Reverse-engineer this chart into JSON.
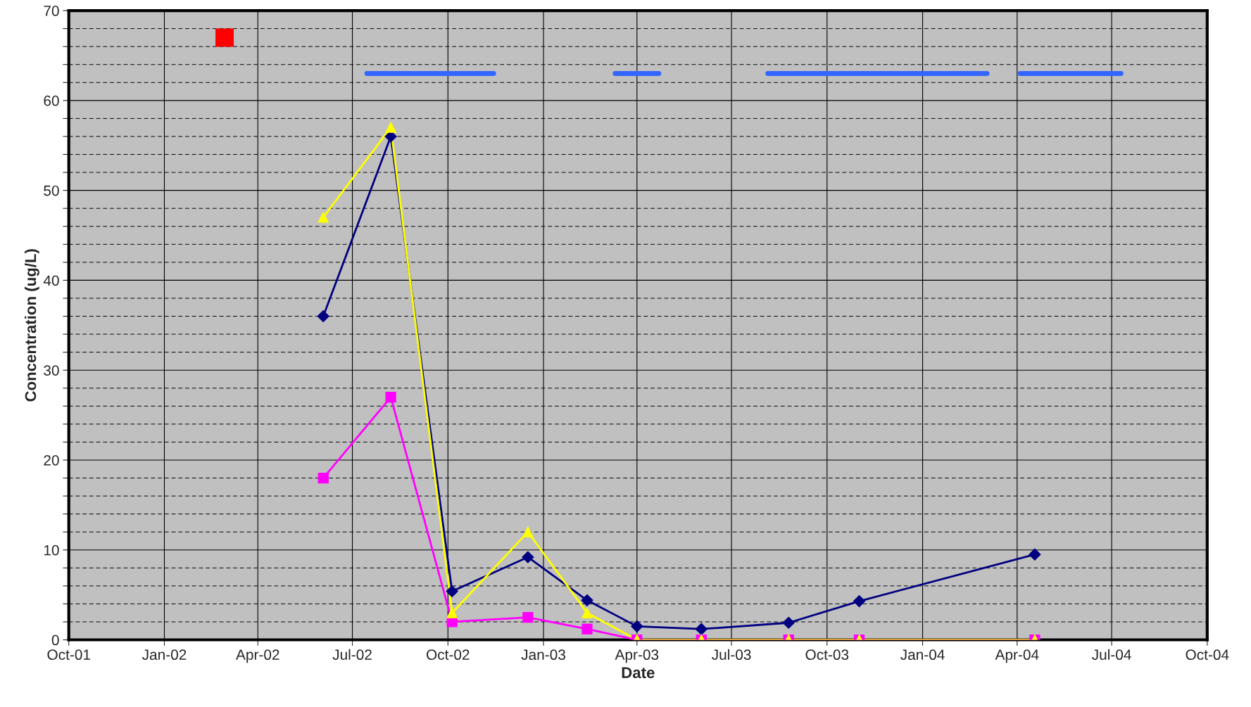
{
  "chart_data": {
    "type": "line",
    "xlabel": "Date",
    "ylabel": "Concentration (ug/L)",
    "xlim": [
      "2001-10-01",
      "2004-10-01"
    ],
    "xticks": [
      {
        "value": "2001-10-01",
        "label": "Oct-01"
      },
      {
        "value": "2002-01-01",
        "label": "Jan-02"
      },
      {
        "value": "2002-04-01",
        "label": "Apr-02"
      },
      {
        "value": "2002-07-01",
        "label": "Jul-02"
      },
      {
        "value": "2002-10-01",
        "label": "Oct-02"
      },
      {
        "value": "2003-01-01",
        "label": "Jan-03"
      },
      {
        "value": "2003-04-01",
        "label": "Apr-03"
      },
      {
        "value": "2003-07-01",
        "label": "Jul-03"
      },
      {
        "value": "2003-10-01",
        "label": "Oct-03"
      },
      {
        "value": "2004-01-01",
        "label": "Jan-04"
      },
      {
        "value": "2004-04-01",
        "label": "Apr-04"
      },
      {
        "value": "2004-07-01",
        "label": "Jul-04"
      },
      {
        "value": "2004-10-01",
        "label": "Oct-04"
      }
    ],
    "ylim": [
      0,
      70
    ],
    "yticks": [
      0,
      {
        "value": 2,
        "label": null
      },
      {
        "value": 4,
        "label": null
      },
      {
        "value": 6,
        "label": null
      },
      {
        "value": 8,
        "label": null
      },
      10,
      {
        "value": 12,
        "label": null
      },
      {
        "value": 14,
        "label": null
      },
      {
        "value": 16,
        "label": null
      },
      {
        "value": 18,
        "label": null
      },
      20,
      {
        "value": 22,
        "label": null
      },
      {
        "value": 24,
        "label": null
      },
      {
        "value": 26,
        "label": null
      },
      {
        "value": 28,
        "label": null
      },
      30,
      {
        "value": 32,
        "label": null
      },
      {
        "value": 34,
        "label": null
      },
      {
        "value": 36,
        "label": null
      },
      {
        "value": 38,
        "label": null
      },
      40,
      {
        "value": 42,
        "label": null
      },
      {
        "value": 44,
        "label": null
      },
      {
        "value": 46,
        "label": null
      },
      {
        "value": 48,
        "label": null
      },
      50,
      {
        "value": 52,
        "label": null
      },
      {
        "value": 54,
        "label": null
      },
      {
        "value": 56,
        "label": null
      },
      {
        "value": 58,
        "label": null
      },
      60,
      {
        "value": 62,
        "label": null
      },
      {
        "value": 64,
        "label": null
      },
      {
        "value": 66,
        "label": null
      },
      {
        "value": 68,
        "label": null
      },
      70
    ],
    "grid": true,
    "legend": false,
    "series": [
      {
        "marker": "diamond",
        "color": "#000080",
        "x": [
          "2002-06-03",
          "2002-08-07",
          "2002-10-05",
          "2002-12-17",
          "2003-02-12",
          "2003-04-01",
          "2003-06-02",
          "2003-08-25",
          "2003-11-01",
          "2004-04-18"
        ],
        "values": [
          36,
          56,
          5.4,
          9.2,
          4.4,
          1.5,
          1.2,
          1.9,
          4.3,
          9.5
        ]
      },
      {
        "marker": "square",
        "color": "#ff00ff",
        "x": [
          "2002-06-03",
          "2002-08-07",
          "2002-10-05",
          "2002-12-17",
          "2003-02-12",
          "2003-04-01",
          "2003-06-02",
          "2003-08-25",
          "2003-11-01",
          "2004-04-18"
        ],
        "values": [
          18,
          27,
          2,
          2.5,
          1.2,
          0,
          0,
          0,
          0,
          0
        ]
      },
      {
        "marker": "triangle",
        "color": "#ffff00",
        "x": [
          "2002-06-03",
          "2002-08-07",
          "2002-10-05",
          "2002-12-17",
          "2003-02-12",
          "2003-04-01",
          "2003-06-02",
          "2003-08-25",
          "2003-11-01",
          "2004-04-18"
        ],
        "values": [
          47,
          57,
          3,
          12,
          3,
          0,
          0,
          0,
          0,
          0
        ]
      },
      {
        "type": "scatter",
        "marker": "square",
        "color": "#ff0000",
        "x": [
          "2002-02-28"
        ],
        "values": [
          67
        ]
      },
      {
        "marker": "none",
        "color": "#3366ff",
        "x": [
          "2002-07-15",
          "2002-11-14"
        ],
        "values": [
          63,
          63
        ]
      },
      {
        "marker": "none",
        "color": "#3366ff",
        "x": [
          "2003-03-11",
          "2003-04-22"
        ],
        "values": [
          63,
          63
        ]
      },
      {
        "marker": "none",
        "color": "#3366ff",
        "x": [
          "2003-08-05",
          "2004-03-03"
        ],
        "values": [
          63,
          63
        ]
      },
      {
        "marker": "none",
        "color": "#3366ff",
        "x": [
          "2004-04-04",
          "2004-07-10"
        ],
        "values": [
          63,
          63
        ]
      }
    ]
  }
}
